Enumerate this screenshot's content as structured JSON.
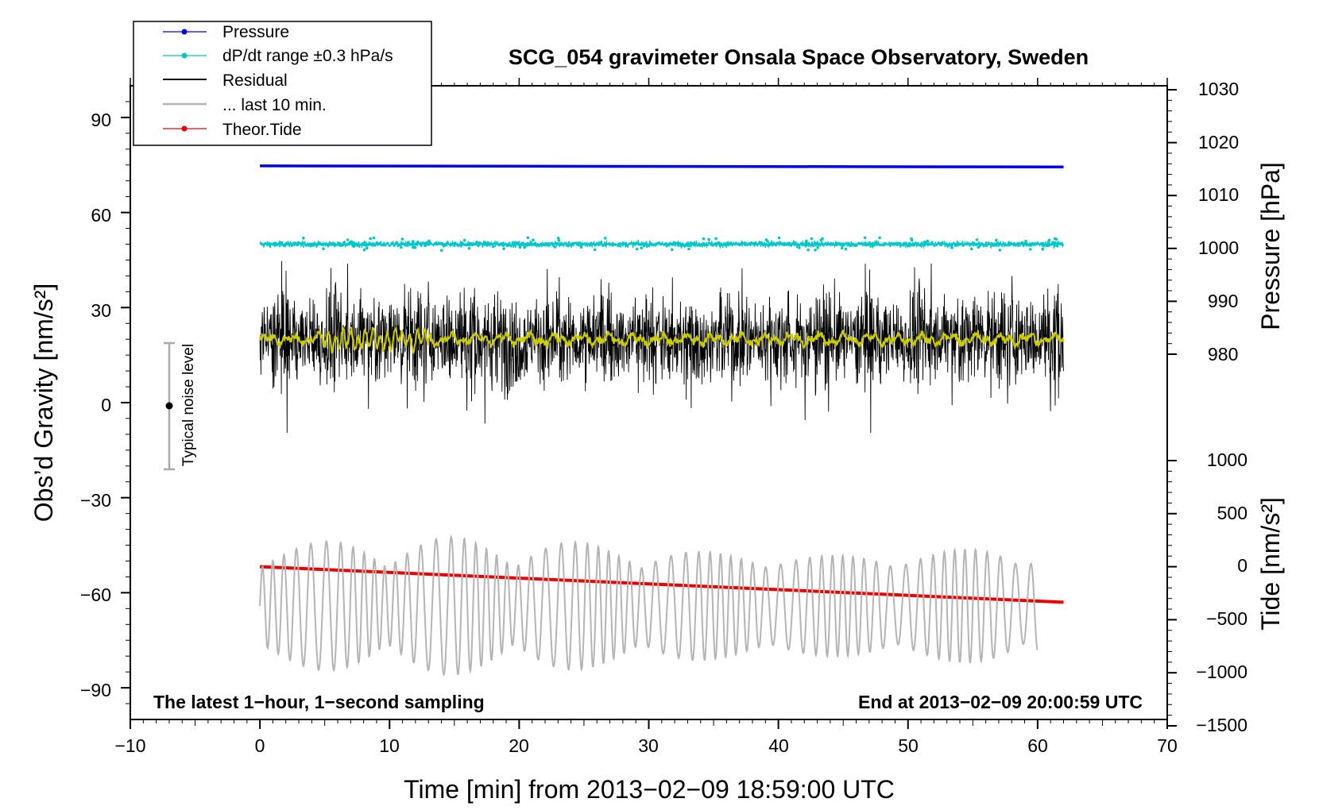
{
  "chart_data": {
    "type": "line",
    "title": "SCG_054 gravimeter Onsala Space Observatory, Sweden",
    "xlabel": "Time [min] from 2013−02−09 18:59:00 UTC",
    "ylabel_left": "Obs’d Gravity [nm/s²]",
    "ylabel_right_pressure": "Pressure [hPa]",
    "ylabel_right_tide": "Tide [nm/s²]",
    "xlim": [
      -10,
      70
    ],
    "ylim_left": [
      -100,
      100
    ],
    "x_ticks": [
      "−10",
      "0",
      "10",
      "20",
      "30",
      "40",
      "50",
      "60",
      "70"
    ],
    "x_tick_values": [
      -10,
      0,
      10,
      20,
      30,
      40,
      50,
      60,
      70
    ],
    "y_left_ticks": [
      "90",
      "60",
      "30",
      "0",
      "−30",
      "−60",
      "−90"
    ],
    "y_left_tick_values": [
      90,
      60,
      30,
      0,
      -30,
      -60,
      -90
    ],
    "pressure_axis": {
      "ticks": [
        "1030",
        "1020",
        "1010",
        "1000",
        "990",
        "980"
      ],
      "tick_values": [
        1030,
        1020,
        1010,
        1000,
        990,
        980
      ],
      "range": [
        980,
        1030
      ]
    },
    "tide_axis": {
      "ticks": [
        "1000",
        "500",
        "0",
        "−500",
        "−1000",
        "−1500"
      ],
      "tick_values": [
        1000,
        500,
        0,
        -500,
        -1000,
        -1500
      ],
      "range": [
        -1500,
        1000
      ]
    },
    "legend": [
      {
        "name": "Pressure",
        "color": "#0000ee",
        "style": "line-dot"
      },
      {
        "name": "dP/dt range ±0.3 hPa/s",
        "color": "#00c8c8",
        "style": "line-dot"
      },
      {
        "name": "Residual",
        "color": "#000000",
        "style": "line"
      },
      {
        "name": "... last 10 min.",
        "color": "#b4b4b4",
        "style": "line"
      },
      {
        "name": "Theor.Tide",
        "color": "#ee0000",
        "style": "line-dot"
      }
    ],
    "series": [
      {
        "name": "Pressure",
        "axis": "pressure",
        "x_range": [
          0,
          62
        ],
        "values_start_end": [
          1015.6,
          1015.4
        ]
      },
      {
        "name": "dP/dt range ±0.3 hPa/s",
        "axis": "left",
        "x_range": [
          0,
          62
        ],
        "mean": 50,
        "spread": 1.5
      },
      {
        "name": "Residual",
        "axis": "left",
        "x_range": [
          0,
          62
        ],
        "mean": 20,
        "min": -10,
        "max": 54
      },
      {
        "name": "Residual (smoothed)",
        "axis": "left",
        "x_range": [
          0,
          62
        ],
        "mean": 20,
        "color": "#cccc00"
      },
      {
        "name": "... last 10 min.",
        "axis": "tide",
        "x_range": [
          0,
          60
        ],
        "mean": -370,
        "amplitude_max": 650
      },
      {
        "name": "Theor.Tide",
        "axis": "tide",
        "x_range": [
          0,
          62
        ],
        "values_start_end": [
          0,
          -335
        ]
      }
    ],
    "noise_bar": {
      "label": "Typical noise level",
      "x": -7,
      "center": 0,
      "half_range": 20
    },
    "annotations": {
      "bottom_left": "The latest 1−hour, 1−second sampling",
      "bottom_right": "End at 2013−02−09 20:00:59 UTC"
    }
  }
}
